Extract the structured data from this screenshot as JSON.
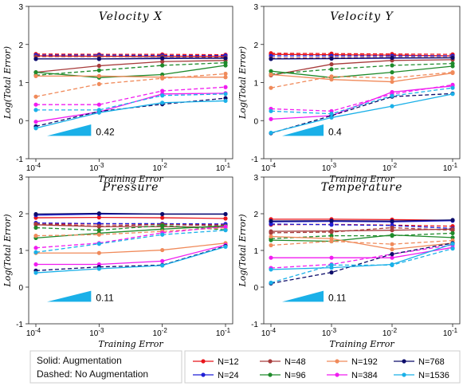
{
  "legend": {
    "style_notes": [
      "Solid: Augmentation",
      "Dashed: No Augmentation"
    ],
    "entries": [
      {
        "label": "N=12",
        "color": "#e8151b"
      },
      {
        "label": "N=24",
        "color": "#1f1fd6"
      },
      {
        "label": "N=48",
        "color": "#a83c3c"
      },
      {
        "label": "N=96",
        "color": "#1e8a2a"
      },
      {
        "label": "N=192",
        "color": "#f08a5a"
      },
      {
        "label": "N=384",
        "color": "#f01cf0"
      },
      {
        "label": "N=768",
        "color": "#0c0c6a"
      },
      {
        "label": "N=1536",
        "color": "#1ab0e8"
      }
    ]
  },
  "chart_data": [
    {
      "type": "line",
      "title": "Velocity X",
      "xlabel": "Training Error",
      "ylabel": "Log(Total Error)",
      "x_ticks": [
        "10^-4",
        "10^-3",
        "10^-2",
        "10^-1"
      ],
      "x": [
        0.0001,
        0.001,
        0.01,
        0.1
      ],
      "x_scale": "log",
      "ylim": [
        -1,
        3
      ],
      "y_ticks": [
        -1,
        0,
        1,
        2,
        3
      ],
      "slope_label": "0.42",
      "series": [
        {
          "name": "N=12",
          "style": "solid",
          "values": [
            1.7,
            1.69,
            1.69,
            1.69
          ]
        },
        {
          "name": "N=12",
          "style": "dashed",
          "values": [
            1.75,
            1.74,
            1.74,
            1.73
          ]
        },
        {
          "name": "N=24",
          "style": "solid",
          "values": [
            1.62,
            1.62,
            1.63,
            1.64
          ]
        },
        {
          "name": "N=24",
          "style": "dashed",
          "values": [
            1.72,
            1.72,
            1.71,
            1.71
          ]
        },
        {
          "name": "N=48",
          "style": "solid",
          "values": [
            1.27,
            1.44,
            1.55,
            1.58
          ]
        },
        {
          "name": "N=48",
          "style": "dashed",
          "values": [
            1.68,
            1.68,
            1.68,
            1.66
          ]
        },
        {
          "name": "N=96",
          "style": "solid",
          "values": [
            1.27,
            1.13,
            1.21,
            1.45
          ]
        },
        {
          "name": "N=96",
          "style": "dashed",
          "values": [
            1.19,
            1.32,
            1.45,
            1.52
          ]
        },
        {
          "name": "N=192",
          "style": "solid",
          "values": [
            1.17,
            1.17,
            1.14,
            1.14
          ]
        },
        {
          "name": "N=192",
          "style": "dashed",
          "values": [
            0.63,
            0.96,
            1.11,
            1.23
          ]
        },
        {
          "name": "N=384",
          "style": "solid",
          "values": [
            -0.03,
            0.23,
            0.7,
            0.72
          ]
        },
        {
          "name": "N=384",
          "style": "dashed",
          "values": [
            0.42,
            0.42,
            0.78,
            0.88
          ]
        },
        {
          "name": "N=768",
          "style": "solid",
          "values": [
            1.62,
            1.62,
            1.64,
            1.64
          ]
        },
        {
          "name": "N=768",
          "style": "dashed",
          "values": [
            -0.15,
            0.24,
            0.43,
            0.59
          ]
        },
        {
          "name": "N=1536",
          "style": "solid",
          "values": [
            -0.2,
            0.21,
            0.47,
            0.52
          ]
        },
        {
          "name": "N=1536",
          "style": "dashed",
          "values": [
            0.28,
            0.28,
            0.66,
            0.7
          ]
        }
      ]
    },
    {
      "type": "line",
      "title": "Velocity Y",
      "xlabel": "Training Error",
      "ylabel": "Log(Total Error)",
      "x_ticks": [
        "10^-4",
        "10^-3",
        "10^-2",
        "10^-1"
      ],
      "x": [
        0.0001,
        0.001,
        0.01,
        0.1
      ],
      "x_scale": "log",
      "ylim": [
        -1,
        3
      ],
      "y_ticks": [
        -1,
        0,
        1,
        2,
        3
      ],
      "slope_label": "0.4",
      "series": [
        {
          "name": "N=12",
          "style": "solid",
          "values": [
            1.74,
            1.73,
            1.72,
            1.7
          ]
        },
        {
          "name": "N=12",
          "style": "dashed",
          "values": [
            1.77,
            1.76,
            1.75,
            1.74
          ]
        },
        {
          "name": "N=24",
          "style": "solid",
          "values": [
            1.62,
            1.63,
            1.64,
            1.65
          ]
        },
        {
          "name": "N=24",
          "style": "dashed",
          "values": [
            1.7,
            1.7,
            1.7,
            1.7
          ]
        },
        {
          "name": "N=48",
          "style": "solid",
          "values": [
            1.19,
            1.48,
            1.58,
            1.6
          ]
        },
        {
          "name": "N=48",
          "style": "dashed",
          "values": [
            1.64,
            1.65,
            1.66,
            1.66
          ]
        },
        {
          "name": "N=96",
          "style": "solid",
          "values": [
            1.3,
            1.13,
            1.27,
            1.43
          ]
        },
        {
          "name": "N=96",
          "style": "dashed",
          "values": [
            1.22,
            1.35,
            1.45,
            1.5
          ]
        },
        {
          "name": "N=192",
          "style": "solid",
          "values": [
            1.21,
            1.08,
            1.02,
            1.25
          ]
        },
        {
          "name": "N=192",
          "style": "dashed",
          "values": [
            0.86,
            1.16,
            1.12,
            1.27
          ]
        },
        {
          "name": "N=384",
          "style": "solid",
          "values": [
            0.04,
            0.13,
            0.75,
            0.91
          ]
        },
        {
          "name": "N=384",
          "style": "dashed",
          "values": [
            0.31,
            0.25,
            0.7,
            0.94
          ]
        },
        {
          "name": "N=768",
          "style": "solid",
          "values": [
            1.62,
            1.63,
            1.65,
            1.65
          ]
        },
        {
          "name": "N=768",
          "style": "dashed",
          "values": [
            -0.33,
            0.13,
            0.63,
            0.71
          ]
        },
        {
          "name": "N=1536",
          "style": "solid",
          "values": [
            -0.32,
            0.08,
            0.38,
            0.7
          ]
        },
        {
          "name": "N=1536",
          "style": "dashed",
          "values": [
            0.25,
            0.18,
            0.65,
            0.86
          ]
        }
      ]
    },
    {
      "type": "line",
      "title": "Pressure",
      "xlabel": "Training Error",
      "ylabel": "Log(Total Error)",
      "x_ticks": [
        "10^-4",
        "10^-3",
        "10^-2",
        "10^-1"
      ],
      "x": [
        0.0001,
        0.001,
        0.01,
        0.1
      ],
      "x_scale": "log",
      "ylim": [
        -1,
        3
      ],
      "y_ticks": [
        -1,
        0,
        1,
        2,
        3
      ],
      "slope_label": "0.11",
      "series": [
        {
          "name": "N=12",
          "style": "solid",
          "values": [
            1.89,
            1.9,
            1.89,
            1.87
          ]
        },
        {
          "name": "N=12",
          "style": "dashed",
          "values": [
            1.72,
            1.72,
            1.72,
            1.7
          ]
        },
        {
          "name": "N=24",
          "style": "solid",
          "values": [
            1.96,
            1.99,
            1.99,
            1.99
          ]
        },
        {
          "name": "N=24",
          "style": "dashed",
          "values": [
            1.75,
            1.73,
            1.73,
            1.72
          ]
        },
        {
          "name": "N=48",
          "style": "solid",
          "values": [
            1.7,
            1.65,
            1.65,
            1.63
          ]
        },
        {
          "name": "N=48",
          "style": "dashed",
          "values": [
            1.72,
            1.66,
            1.71,
            1.67
          ]
        },
        {
          "name": "N=96",
          "style": "solid",
          "values": [
            1.34,
            1.47,
            1.58,
            1.67
          ]
        },
        {
          "name": "N=96",
          "style": "dashed",
          "values": [
            1.62,
            1.55,
            1.68,
            1.56
          ]
        },
        {
          "name": "N=192",
          "style": "solid",
          "values": [
            0.93,
            0.93,
            1.01,
            1.2
          ]
        },
        {
          "name": "N=192",
          "style": "dashed",
          "values": [
            1.4,
            1.43,
            1.52,
            1.62
          ]
        },
        {
          "name": "N=384",
          "style": "solid",
          "values": [
            0.62,
            0.62,
            0.71,
            1.15
          ]
        },
        {
          "name": "N=384",
          "style": "dashed",
          "values": [
            1.07,
            1.2,
            1.48,
            1.65
          ]
        },
        {
          "name": "N=768",
          "style": "solid",
          "values": [
            1.99,
            2.01,
            1.99,
            1.99
          ]
        },
        {
          "name": "N=768",
          "style": "dashed",
          "values": [
            0.45,
            0.55,
            0.6,
            1.12
          ]
        },
        {
          "name": "N=1536",
          "style": "solid",
          "values": [
            0.39,
            0.5,
            0.59,
            1.1
          ]
        },
        {
          "name": "N=1536",
          "style": "dashed",
          "values": [
            0.95,
            1.18,
            1.43,
            1.55
          ]
        }
      ]
    },
    {
      "type": "line",
      "title": "Temperature",
      "xlabel": "Training Error",
      "ylabel": "Log(Total Error)",
      "x_ticks": [
        "10^-4",
        "10^-3",
        "10^-2",
        "10^-1"
      ],
      "x": [
        0.0001,
        0.001,
        0.01,
        0.1
      ],
      "x_scale": "log",
      "ylim": [
        -1,
        3
      ],
      "y_ticks": [
        -1,
        0,
        1,
        2,
        3
      ],
      "slope_label": "0.11",
      "series": [
        {
          "name": "N=12",
          "style": "solid",
          "values": [
            1.85,
            1.85,
            1.84,
            1.82
          ]
        },
        {
          "name": "N=12",
          "style": "dashed",
          "values": [
            1.7,
            1.71,
            1.69,
            1.66
          ]
        },
        {
          "name": "N=24",
          "style": "solid",
          "values": [
            1.78,
            1.79,
            1.78,
            1.81
          ]
        },
        {
          "name": "N=24",
          "style": "dashed",
          "values": [
            1.72,
            1.7,
            1.68,
            1.6
          ]
        },
        {
          "name": "N=48",
          "style": "solid",
          "values": [
            1.52,
            1.53,
            1.55,
            1.58
          ]
        },
        {
          "name": "N=48",
          "style": "dashed",
          "values": [
            1.48,
            1.5,
            1.62,
            1.55
          ]
        },
        {
          "name": "N=96",
          "style": "solid",
          "values": [
            1.28,
            1.25,
            1.42,
            1.35
          ]
        },
        {
          "name": "N=96",
          "style": "dashed",
          "values": [
            1.32,
            1.4,
            1.4,
            1.47
          ]
        },
        {
          "name": "N=192",
          "style": "solid",
          "values": [
            1.38,
            1.32,
            1.03,
            1.2
          ]
        },
        {
          "name": "N=192",
          "style": "dashed",
          "values": [
            1.14,
            1.25,
            1.17,
            1.27
          ]
        },
        {
          "name": "N=384",
          "style": "solid",
          "values": [
            0.8,
            0.8,
            0.8,
            1.08
          ]
        },
        {
          "name": "N=384",
          "style": "dashed",
          "values": [
            0.52,
            0.62,
            0.9,
            1.15
          ]
        },
        {
          "name": "N=768",
          "style": "solid",
          "values": [
            1.8,
            1.81,
            1.8,
            1.83
          ]
        },
        {
          "name": "N=768",
          "style": "dashed",
          "values": [
            0.1,
            0.4,
            0.9,
            1.2
          ]
        },
        {
          "name": "N=1536",
          "style": "solid",
          "values": [
            0.48,
            0.53,
            0.62,
            1.18
          ]
        },
        {
          "name": "N=1536",
          "style": "dashed",
          "values": [
            0.12,
            0.6,
            0.6,
            1.05
          ]
        }
      ]
    }
  ]
}
